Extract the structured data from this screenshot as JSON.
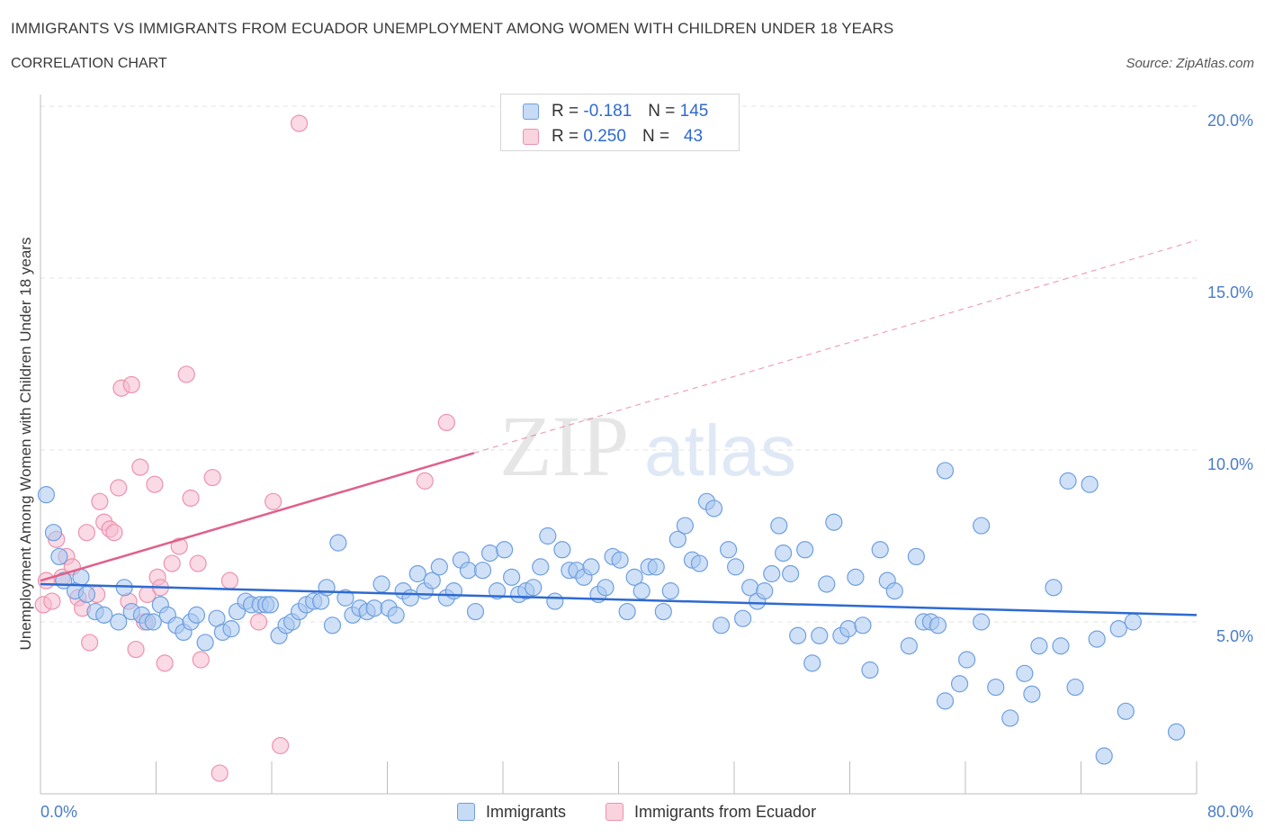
{
  "header": {
    "title": "IMMIGRANTS VS IMMIGRANTS FROM ECUADOR UNEMPLOYMENT AMONG WOMEN WITH CHILDREN UNDER 18 YEARS",
    "subtitle": "CORRELATION CHART",
    "source": "Source: ZipAtlas.com"
  },
  "watermark": {
    "zip": "ZIP",
    "atlas": "atlas"
  },
  "stats_legend": {
    "rows": [
      {
        "r_label": "R =",
        "r_value": "-0.181",
        "n_label": "N =",
        "n_value": "145"
      },
      {
        "r_label": "R =",
        "r_value": "0.250",
        "n_label": "N =",
        "n_value": "43"
      }
    ]
  },
  "colors": {
    "blue_fill": "#aac8f0",
    "blue_stroke": "#6e9fe0",
    "blue_line": "#2e6ad1",
    "pink_fill": "#f6bccd",
    "pink_stroke": "#ec93ae",
    "pink_line": "#e0608a",
    "grid": "#e3e3e3",
    "tick_label": "#4a7cc9"
  },
  "chart_data": {
    "type": "scatter",
    "xlabel": "",
    "ylabel": "Unemployment Among Women with Children Under 18 years",
    "xlim": [
      0,
      80
    ],
    "ylim": [
      0,
      20
    ],
    "x_tick_labels": [
      {
        "value": 0,
        "label": "0.0%"
      },
      {
        "value": 80,
        "label": "80.0%"
      }
    ],
    "y_tick_labels": [
      {
        "value": 5,
        "label": "5.0%"
      },
      {
        "value": 10,
        "label": "10.0%"
      },
      {
        "value": 15,
        "label": "15.0%"
      },
      {
        "value": 20,
        "label": "20.0%"
      }
    ],
    "legend_position": "bottom-center",
    "series": [
      {
        "name": "Immigrants",
        "r": -0.181,
        "n": 145,
        "trend": {
          "x": [
            0,
            80
          ],
          "y": [
            6.1,
            5.2
          ],
          "dashed_from": null
        },
        "points": [
          [
            0.4,
            8.7
          ],
          [
            0.9,
            7.6
          ],
          [
            1.3,
            6.9
          ],
          [
            1.6,
            6.2
          ],
          [
            2.4,
            5.9
          ],
          [
            2.8,
            6.3
          ],
          [
            3.2,
            5.8
          ],
          [
            3.8,
            5.3
          ],
          [
            4.4,
            5.2
          ],
          [
            5.4,
            5.0
          ],
          [
            5.8,
            6.0
          ],
          [
            6.3,
            5.3
          ],
          [
            7.0,
            5.2
          ],
          [
            7.4,
            5.0
          ],
          [
            7.8,
            5.0
          ],
          [
            8.3,
            5.5
          ],
          [
            8.8,
            5.2
          ],
          [
            9.4,
            4.9
          ],
          [
            9.9,
            4.7
          ],
          [
            10.4,
            5.0
          ],
          [
            10.8,
            5.2
          ],
          [
            11.4,
            4.4
          ],
          [
            12.2,
            5.1
          ],
          [
            12.6,
            4.7
          ],
          [
            13.2,
            4.8
          ],
          [
            13.6,
            5.3
          ],
          [
            14.2,
            5.6
          ],
          [
            14.6,
            5.5
          ],
          [
            15.2,
            5.5
          ],
          [
            15.6,
            5.5
          ],
          [
            15.9,
            5.5
          ],
          [
            16.5,
            4.6
          ],
          [
            17.0,
            4.9
          ],
          [
            17.4,
            5.0
          ],
          [
            17.9,
            5.3
          ],
          [
            18.4,
            5.5
          ],
          [
            18.9,
            5.6
          ],
          [
            19.4,
            5.6
          ],
          [
            19.8,
            6.0
          ],
          [
            20.2,
            4.9
          ],
          [
            20.6,
            7.3
          ],
          [
            21.1,
            5.7
          ],
          [
            21.6,
            5.2
          ],
          [
            22.1,
            5.4
          ],
          [
            22.6,
            5.3
          ],
          [
            23.1,
            5.4
          ],
          [
            23.6,
            6.1
          ],
          [
            24.1,
            5.4
          ],
          [
            24.6,
            5.2
          ],
          [
            25.1,
            5.9
          ],
          [
            25.6,
            5.7
          ],
          [
            26.1,
            6.4
          ],
          [
            26.6,
            5.9
          ],
          [
            27.1,
            6.2
          ],
          [
            27.6,
            6.6
          ],
          [
            28.1,
            5.7
          ],
          [
            28.6,
            5.9
          ],
          [
            29.1,
            6.8
          ],
          [
            29.6,
            6.5
          ],
          [
            30.1,
            5.3
          ],
          [
            30.6,
            6.5
          ],
          [
            31.1,
            7.0
          ],
          [
            31.6,
            5.9
          ],
          [
            32.1,
            7.1
          ],
          [
            32.6,
            6.3
          ],
          [
            33.1,
            5.8
          ],
          [
            33.6,
            5.9
          ],
          [
            34.1,
            6.0
          ],
          [
            34.6,
            6.6
          ],
          [
            35.1,
            7.5
          ],
          [
            35.6,
            5.6
          ],
          [
            36.1,
            7.1
          ],
          [
            36.6,
            6.5
          ],
          [
            37.1,
            6.5
          ],
          [
            37.6,
            6.3
          ],
          [
            38.1,
            6.6
          ],
          [
            38.6,
            5.8
          ],
          [
            39.1,
            6.0
          ],
          [
            39.6,
            6.9
          ],
          [
            40.1,
            6.8
          ],
          [
            40.6,
            5.3
          ],
          [
            41.1,
            6.3
          ],
          [
            41.6,
            5.9
          ],
          [
            42.1,
            6.6
          ],
          [
            42.6,
            6.6
          ],
          [
            43.1,
            5.3
          ],
          [
            43.6,
            5.9
          ],
          [
            44.1,
            7.4
          ],
          [
            44.6,
            7.8
          ],
          [
            45.1,
            6.8
          ],
          [
            45.6,
            6.7
          ],
          [
            46.1,
            8.5
          ],
          [
            46.6,
            8.3
          ],
          [
            47.1,
            4.9
          ],
          [
            47.6,
            7.1
          ],
          [
            48.1,
            6.6
          ],
          [
            48.6,
            5.1
          ],
          [
            49.1,
            6.0
          ],
          [
            49.6,
            5.6
          ],
          [
            50.1,
            5.9
          ],
          [
            50.6,
            6.4
          ],
          [
            51.1,
            7.8
          ],
          [
            51.4,
            7.0
          ],
          [
            51.9,
            6.4
          ],
          [
            52.4,
            4.6
          ],
          [
            52.9,
            7.1
          ],
          [
            53.4,
            3.8
          ],
          [
            53.9,
            4.6
          ],
          [
            54.4,
            6.1
          ],
          [
            54.9,
            7.9
          ],
          [
            55.4,
            4.6
          ],
          [
            55.9,
            4.8
          ],
          [
            56.4,
            6.3
          ],
          [
            56.9,
            4.9
          ],
          [
            57.4,
            3.6
          ],
          [
            58.1,
            7.1
          ],
          [
            58.6,
            6.2
          ],
          [
            59.1,
            5.9
          ],
          [
            60.1,
            4.3
          ],
          [
            60.6,
            6.9
          ],
          [
            61.1,
            5.0
          ],
          [
            61.6,
            5.0
          ],
          [
            62.1,
            4.9
          ],
          [
            62.6,
            2.7
          ],
          [
            62.6,
            9.4
          ],
          [
            63.6,
            3.2
          ],
          [
            64.1,
            3.9
          ],
          [
            65.1,
            7.8
          ],
          [
            65.1,
            5.0
          ],
          [
            66.1,
            3.1
          ],
          [
            67.1,
            2.2
          ],
          [
            68.1,
            3.5
          ],
          [
            68.6,
            2.9
          ],
          [
            69.1,
            4.3
          ],
          [
            70.1,
            6.0
          ],
          [
            70.6,
            4.3
          ],
          [
            71.1,
            9.1
          ],
          [
            71.6,
            3.1
          ],
          [
            72.6,
            9.0
          ],
          [
            73.1,
            4.5
          ],
          [
            73.6,
            1.1
          ],
          [
            74.6,
            4.8
          ],
          [
            75.1,
            2.4
          ],
          [
            75.6,
            5.0
          ],
          [
            78.6,
            1.8
          ]
        ]
      },
      {
        "name": "Immigrants from Ecuador",
        "r": 0.25,
        "n": 43,
        "trend": {
          "x": [
            0,
            80
          ],
          "y": [
            6.2,
            16.1
          ],
          "solid_until_x": 30
        },
        "points": [
          [
            0.2,
            5.5
          ],
          [
            0.4,
            6.2
          ],
          [
            0.8,
            5.6
          ],
          [
            1.1,
            7.4
          ],
          [
            1.5,
            6.3
          ],
          [
            1.8,
            6.9
          ],
          [
            2.2,
            6.6
          ],
          [
            2.6,
            5.7
          ],
          [
            2.9,
            5.4
          ],
          [
            3.2,
            7.6
          ],
          [
            3.4,
            4.4
          ],
          [
            3.9,
            5.8
          ],
          [
            4.1,
            8.5
          ],
          [
            4.4,
            7.9
          ],
          [
            4.8,
            7.7
          ],
          [
            5.1,
            7.6
          ],
          [
            5.4,
            8.9
          ],
          [
            5.6,
            11.8
          ],
          [
            6.1,
            5.6
          ],
          [
            6.3,
            11.9
          ],
          [
            6.6,
            4.2
          ],
          [
            6.9,
            9.5
          ],
          [
            7.2,
            5.0
          ],
          [
            7.4,
            5.8
          ],
          [
            7.9,
            9.0
          ],
          [
            8.1,
            6.3
          ],
          [
            8.3,
            6.0
          ],
          [
            8.6,
            3.8
          ],
          [
            9.1,
            6.7
          ],
          [
            9.6,
            7.2
          ],
          [
            10.1,
            12.2
          ],
          [
            10.4,
            8.6
          ],
          [
            10.9,
            6.7
          ],
          [
            11.1,
            3.9
          ],
          [
            11.9,
            9.2
          ],
          [
            12.4,
            0.6
          ],
          [
            13.1,
            6.2
          ],
          [
            15.1,
            5.0
          ],
          [
            16.1,
            8.5
          ],
          [
            16.6,
            1.4
          ],
          [
            17.9,
            19.5
          ],
          [
            26.6,
            9.1
          ],
          [
            28.1,
            10.8
          ]
        ]
      }
    ]
  }
}
